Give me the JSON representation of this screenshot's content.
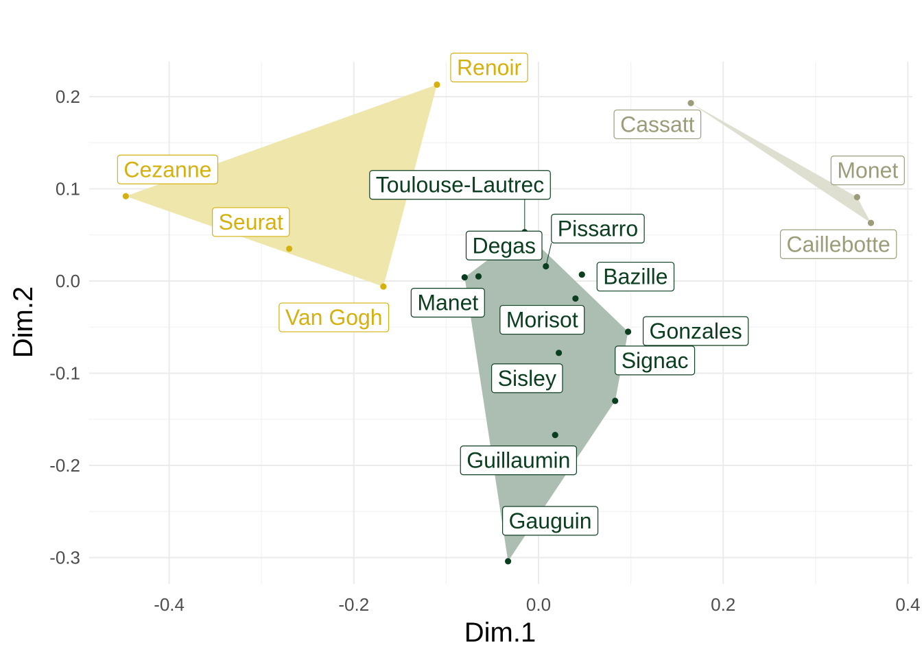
{
  "chart_data": {
    "type": "scatter",
    "title": "",
    "xlabel": "Dim.1",
    "ylabel": "Dim.2",
    "xlim": [
      -0.48,
      0.4
    ],
    "ylim": [
      -0.33,
      0.24
    ],
    "x_ticks": [
      -0.4,
      -0.2,
      0.0,
      0.2,
      0.4
    ],
    "x_tick_labels": [
      "-0.4",
      "-0.2",
      "0.0",
      "0.2",
      "0.4"
    ],
    "y_ticks": [
      -0.3,
      -0.2,
      -0.1,
      0.0,
      0.1,
      0.2
    ],
    "y_tick_labels": [
      "-0.3",
      "-0.2",
      "-0.1",
      "0.0",
      "0.1",
      "0.2"
    ],
    "grid": true,
    "legend": "none",
    "groups": [
      {
        "color": "#D4B10E",
        "fill": "#EEE5A8",
        "hull": [
          "Renoir",
          "Cezanne",
          "Van Gogh"
        ],
        "points": [
          {
            "label": "Renoir",
            "x": -0.11,
            "y": 0.213
          },
          {
            "label": "Cezanne",
            "x": -0.447,
            "y": 0.092
          },
          {
            "label": "Seurat",
            "x": -0.27,
            "y": 0.035
          },
          {
            "label": "Van Gogh",
            "x": -0.168,
            "y": -0.006
          }
        ]
      },
      {
        "color": "#9C9C7A",
        "fill": "#DCDDCF",
        "hull": [
          "Cassatt",
          "Monet",
          "Caillebotte"
        ],
        "points": [
          {
            "label": "Cassatt",
            "x": 0.165,
            "y": 0.193
          },
          {
            "label": "Monet",
            "x": 0.345,
            "y": 0.091
          },
          {
            "label": "Caillebotte",
            "x": 0.36,
            "y": 0.063
          }
        ]
      },
      {
        "color": "#0B3D1F",
        "fill": "#A8BAAE",
        "hull": [
          "Toulouse-Lautrec",
          "Gonzales",
          "Signac",
          "Gauguin",
          "Manet"
        ],
        "points": [
          {
            "label": "Toulouse-Lautrec",
            "x": -0.015,
            "y": 0.053
          },
          {
            "label": "Pissarro",
            "x": 0.008,
            "y": 0.016
          },
          {
            "label": "Degas",
            "x": -0.065,
            "y": 0.005
          },
          {
            "label": "Manet",
            "x": -0.08,
            "y": 0.004
          },
          {
            "label": "Bazille",
            "x": 0.047,
            "y": 0.007
          },
          {
            "label": "Morisot",
            "x": 0.04,
            "y": -0.019
          },
          {
            "label": "Gonzales",
            "x": 0.097,
            "y": -0.055
          },
          {
            "label": "Sisley",
            "x": 0.022,
            "y": -0.078
          },
          {
            "label": "Signac",
            "x": 0.083,
            "y": -0.13
          },
          {
            "label": "Guillaumin",
            "x": 0.018,
            "y": -0.167
          },
          {
            "label": "Gauguin",
            "x": -0.033,
            "y": -0.304
          }
        ]
      }
    ]
  }
}
